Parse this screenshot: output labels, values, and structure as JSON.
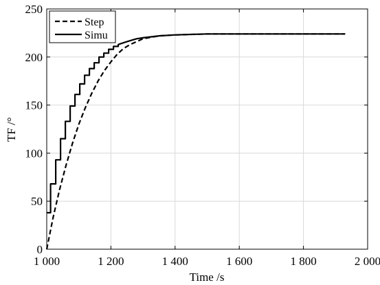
{
  "chart_data": {
    "type": "line",
    "xlabel": "Time /s",
    "ylabel": "TF /°",
    "xlim": [
      1000,
      2000
    ],
    "ylim": [
      0,
      250
    ],
    "xticks": [
      1000,
      1200,
      1400,
      1600,
      1800,
      2000
    ],
    "xtick_labels": [
      "1 000",
      "1 200",
      "1 400",
      "1 600",
      "1 800",
      "2 000"
    ],
    "yticks": [
      0,
      50,
      100,
      150,
      200,
      250
    ],
    "ytick_labels": [
      "0",
      "50",
      "100",
      "150",
      "200",
      "250"
    ],
    "grid": true,
    "legend_position": "top-left",
    "series": [
      {
        "name": "Step",
        "style": "dashed",
        "color": "#000000",
        "x": [
          1000,
          1020,
          1040,
          1060,
          1080,
          1100,
          1120,
          1140,
          1160,
          1180,
          1200,
          1220,
          1240,
          1260,
          1280,
          1300,
          1350,
          1400,
          1500,
          1600,
          1700,
          1800,
          1930
        ],
        "y": [
          0,
          33,
          62,
          87,
          110,
          130,
          147,
          162,
          175,
          186,
          195,
          203,
          209,
          213,
          216,
          219,
          222,
          223,
          224,
          224,
          224,
          224,
          224
        ]
      },
      {
        "name": "Simu",
        "style": "solid",
        "color": "#000000",
        "x": [
          1000,
          1012,
          1012,
          1028,
          1028,
          1043,
          1043,
          1058,
          1058,
          1073,
          1073,
          1088,
          1088,
          1103,
          1103,
          1118,
          1118,
          1133,
          1133,
          1148,
          1148,
          1163,
          1163,
          1178,
          1178,
          1193,
          1193,
          1208,
          1208,
          1223,
          1223,
          1240,
          1260,
          1280,
          1300,
          1350,
          1400,
          1500,
          1600,
          1700,
          1800,
          1930
        ],
        "y": [
          38,
          38,
          68,
          68,
          93,
          93,
          115,
          115,
          133,
          133,
          149,
          149,
          161,
          161,
          172,
          172,
          181,
          181,
          188,
          188,
          194,
          194,
          200,
          200,
          204,
          204,
          208,
          208,
          211,
          211,
          213,
          215,
          217,
          219,
          220,
          222,
          223,
          224,
          224,
          224,
          224,
          224
        ]
      }
    ]
  }
}
